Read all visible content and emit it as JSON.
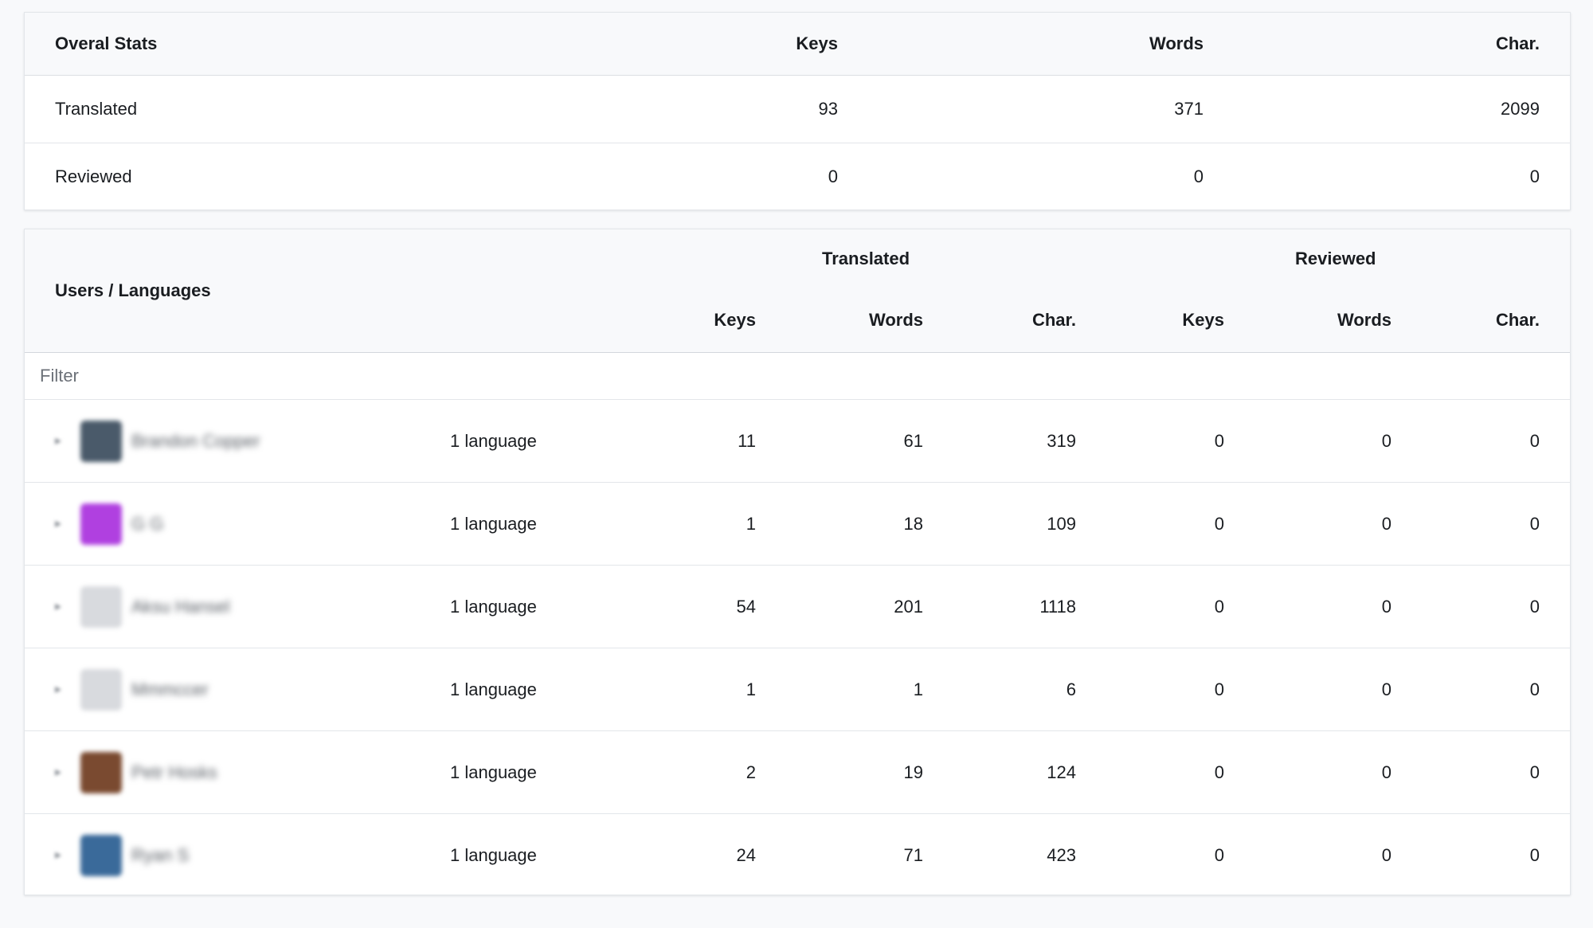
{
  "overall": {
    "title": "Overal Stats",
    "columns": [
      "Keys",
      "Words",
      "Char."
    ],
    "rows": [
      {
        "label": "Translated",
        "keys": "93",
        "words": "371",
        "chars": "2099"
      },
      {
        "label": "Reviewed",
        "keys": "0",
        "words": "0",
        "chars": "0"
      }
    ]
  },
  "users": {
    "title": "Users / Languages",
    "group_translated": "Translated",
    "group_reviewed": "Reviewed",
    "col_keys": "Keys",
    "col_words": "Words",
    "col_chars": "Char.",
    "filter_placeholder": "Filter",
    "rows": [
      {
        "name": "Brandon Copper",
        "avatar_color": "#4a5a6a",
        "languages": "1 language",
        "t_keys": "11",
        "t_words": "61",
        "t_chars": "319",
        "r_keys": "0",
        "r_words": "0",
        "r_chars": "0"
      },
      {
        "name": "G G",
        "avatar_color": "#b040e0",
        "languages": "1 language",
        "t_keys": "1",
        "t_words": "18",
        "t_chars": "109",
        "r_keys": "0",
        "r_words": "0",
        "r_chars": "0"
      },
      {
        "name": "Aksu Hansel",
        "avatar_color": "#d8dade",
        "languages": "1 language",
        "t_keys": "54",
        "t_words": "201",
        "t_chars": "1118",
        "r_keys": "0",
        "r_words": "0",
        "r_chars": "0"
      },
      {
        "name": "Mmmccer",
        "avatar_color": "#d8dade",
        "languages": "1 language",
        "t_keys": "1",
        "t_words": "1",
        "t_chars": "6",
        "r_keys": "0",
        "r_words": "0",
        "r_chars": "0"
      },
      {
        "name": "Petr Hosks",
        "avatar_color": "#7a4a30",
        "languages": "1 language",
        "t_keys": "2",
        "t_words": "19",
        "t_chars": "124",
        "r_keys": "0",
        "r_words": "0",
        "r_chars": "0"
      },
      {
        "name": "Ryan S",
        "avatar_color": "#3a6a9a",
        "languages": "1 language",
        "t_keys": "24",
        "t_words": "71",
        "t_chars": "423",
        "r_keys": "0",
        "r_words": "0",
        "r_chars": "0"
      }
    ]
  }
}
